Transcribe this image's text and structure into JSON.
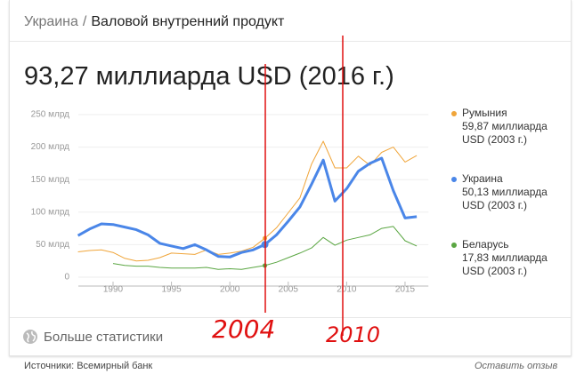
{
  "header": {
    "breadcrumb": [
      "Украина",
      "Валовой внутренний продукт"
    ]
  },
  "headline": "93,27 миллиарда USD (2016 г.)",
  "chart_data": {
    "type": "line",
    "x": [
      1987,
      1988,
      1989,
      1990,
      1991,
      1992,
      1993,
      1994,
      1995,
      1996,
      1997,
      1998,
      1999,
      2000,
      2001,
      2002,
      2003,
      2004,
      2005,
      2006,
      2007,
      2008,
      2009,
      2010,
      2011,
      2012,
      2013,
      2014,
      2015,
      2016
    ],
    "series": [
      {
        "name": "Румыния",
        "legend_label": "59,87 миллиарда USD (2003 г.)",
        "color": "#f0a53a",
        "values": [
          39,
          41,
          42,
          38,
          29,
          25,
          26,
          30,
          37,
          36,
          35,
          42,
          35,
          37,
          40,
          46,
          59.87,
          76,
          99,
          122,
          174,
          209,
          168,
          168,
          186,
          172,
          192,
          200,
          177,
          187
        ]
      },
      {
        "name": "Украина",
        "legend_label": "50,13 миллиарда USD (2003 г.)",
        "color": "#4a86e8",
        "values": [
          64,
          74,
          82,
          81,
          77,
          73,
          65,
          52,
          48,
          44,
          50,
          42,
          32,
          31,
          38,
          42,
          50.13,
          65,
          86,
          108,
          143,
          180,
          117,
          136,
          163,
          175,
          183,
          133,
          91,
          93
        ]
      },
      {
        "name": "Беларусь",
        "legend_label": "17,83 миллиарда USD (2003 г.)",
        "color": "#5aa642",
        "values": [
          null,
          null,
          null,
          21,
          18,
          17,
          17,
          15,
          14,
          14,
          14,
          15,
          12,
          13,
          12,
          15,
          17.83,
          23,
          30,
          37,
          45,
          61,
          49,
          57,
          61,
          65,
          75,
          78,
          56,
          48
        ]
      }
    ],
    "xlim": [
      1986,
      2017
    ],
    "ylim": [
      0,
      250
    ],
    "xticks": [
      1990,
      1995,
      2000,
      2005,
      2010,
      2015
    ],
    "yticks": [
      0,
      {
        "value": 50,
        "label": "50 млрд"
      },
      {
        "value": 100,
        "label": "100 млрд"
      },
      {
        "value": 150,
        "label": "150 млрд"
      },
      {
        "value": 200,
        "label": "200 млрд"
      },
      {
        "value": 250,
        "label": "250 млрд"
      }
    ],
    "grid": true,
    "annotations": [
      "2004",
      "2010"
    ]
  },
  "more_stats": "Больше статистики",
  "footer": {
    "source": "Источники: Всемирный банк",
    "feedback": "Оставить отзыв"
  }
}
